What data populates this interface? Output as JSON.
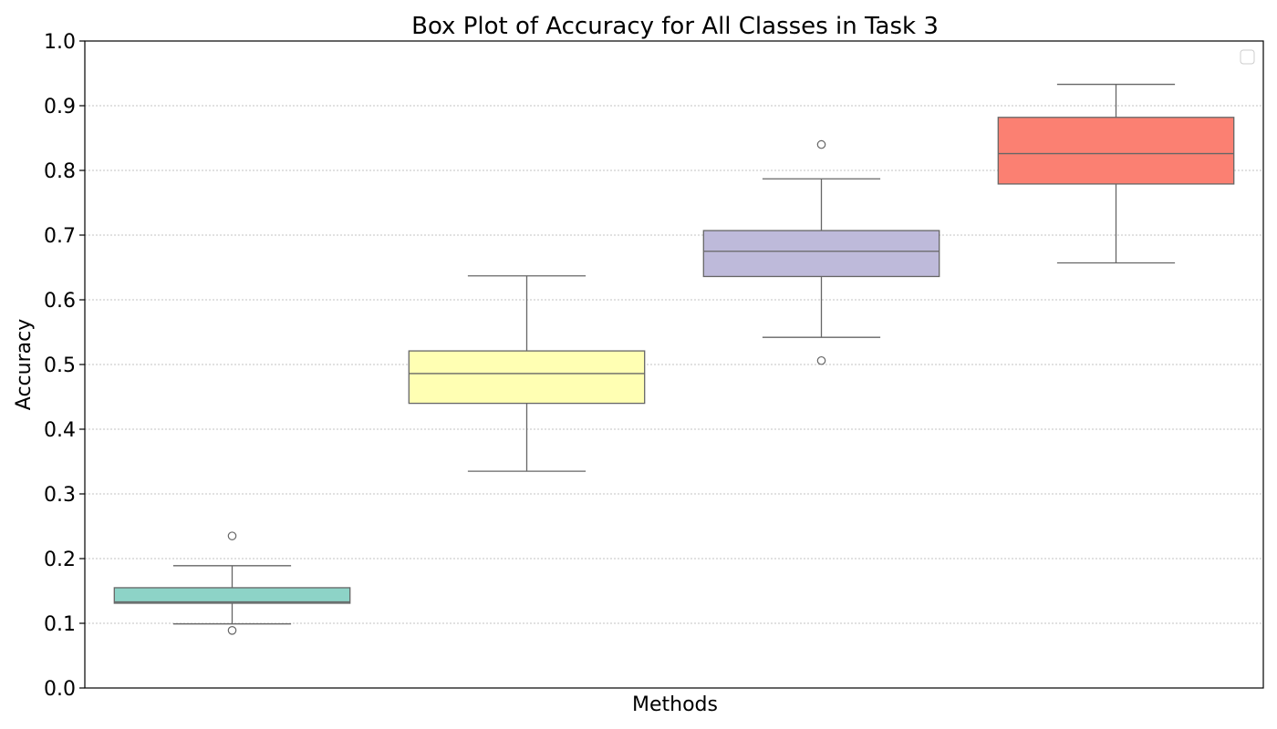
{
  "chart_data": {
    "type": "box",
    "title": "Box Plot of Accuracy for All Classes in Task 3",
    "xlabel": "Methods",
    "ylabel": "Accuracy",
    "ylim": [
      0.0,
      1.0
    ],
    "yticks": [
      "0.0",
      "0.1",
      "0.2",
      "0.3",
      "0.4",
      "0.5",
      "0.6",
      "0.7",
      "0.8",
      "0.9",
      "1.0"
    ],
    "grid": "horizontal dotted",
    "legend": {
      "placement": "top-right",
      "entries": []
    },
    "boxes": [
      {
        "color": "#8dd3c7",
        "whisker_low": 0.099,
        "q1": 0.131,
        "median": 0.133,
        "q3": 0.155,
        "whisker_high": 0.189,
        "fliers": [
          0.089,
          0.235
        ]
      },
      {
        "color": "#ffffb3",
        "whisker_low": 0.335,
        "q1": 0.44,
        "median": 0.486,
        "q3": 0.521,
        "whisker_high": 0.637,
        "fliers": []
      },
      {
        "color": "#bebada",
        "whisker_low": 0.542,
        "q1": 0.636,
        "median": 0.675,
        "q3": 0.707,
        "whisker_high": 0.787,
        "fliers": [
          0.506,
          0.84
        ]
      },
      {
        "color": "#fb8072",
        "whisker_low": 0.657,
        "q1": 0.779,
        "median": 0.826,
        "q3": 0.882,
        "whisker_high": 0.933,
        "fliers": []
      }
    ]
  }
}
